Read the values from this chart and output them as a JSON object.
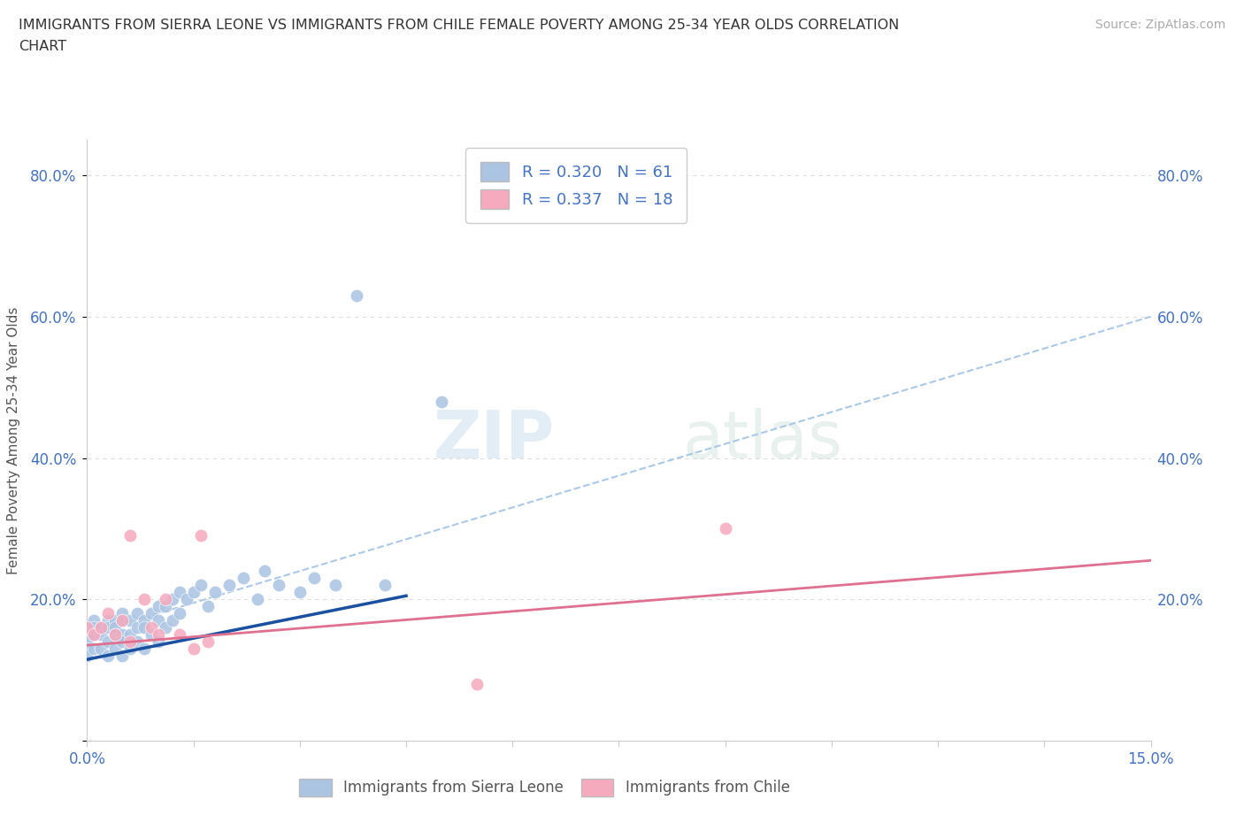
{
  "title_line1": "IMMIGRANTS FROM SIERRA LEONE VS IMMIGRANTS FROM CHILE FEMALE POVERTY AMONG 25-34 YEAR OLDS CORRELATION",
  "title_line2": "CHART",
  "source": "Source: ZipAtlas.com",
  "ylabel": "Female Poverty Among 25-34 Year Olds",
  "x_min": 0.0,
  "x_max": 0.15,
  "y_min": 0.0,
  "y_max": 0.85,
  "sierra_leone_color": "#aac4e2",
  "chile_color": "#f5aabe",
  "sierra_leone_label": "Immigrants from Sierra Leone",
  "chile_label": "Immigrants from Chile",
  "R_sierra_leone": "0.320",
  "N_sierra_leone": 61,
  "R_chile": "0.337",
  "N_chile": 18,
  "watermark_zip": "ZIP",
  "watermark_atlas": "atlas",
  "sl_trend_color": "#1a50a0",
  "ch_trend_color": "#e07090",
  "dashed_line_color": "#aac8e8",
  "background_color": "#ffffff",
  "grid_color": "#dddddd",
  "legend_text_color": "#4472c4",
  "sl_x": [
    0.0,
    0.0,
    0.0,
    0.0,
    0.0,
    0.001,
    0.001,
    0.001,
    0.001,
    0.002,
    0.002,
    0.002,
    0.003,
    0.003,
    0.003,
    0.003,
    0.004,
    0.004,
    0.004,
    0.004,
    0.005,
    0.005,
    0.005,
    0.005,
    0.005,
    0.006,
    0.006,
    0.006,
    0.007,
    0.007,
    0.007,
    0.008,
    0.008,
    0.008,
    0.009,
    0.009,
    0.01,
    0.01,
    0.01,
    0.011,
    0.011,
    0.012,
    0.012,
    0.013,
    0.013,
    0.014,
    0.015,
    0.016,
    0.017,
    0.018,
    0.02,
    0.022,
    0.024,
    0.025,
    0.027,
    0.03,
    0.032,
    0.035,
    0.038,
    0.042,
    0.05
  ],
  "sl_y": [
    0.16,
    0.15,
    0.14,
    0.13,
    0.12,
    0.17,
    0.16,
    0.15,
    0.13,
    0.16,
    0.15,
    0.13,
    0.17,
    0.16,
    0.14,
    0.12,
    0.17,
    0.16,
    0.15,
    0.13,
    0.18,
    0.17,
    0.15,
    0.14,
    0.12,
    0.17,
    0.15,
    0.13,
    0.18,
    0.16,
    0.14,
    0.17,
    0.16,
    0.13,
    0.18,
    0.15,
    0.19,
    0.17,
    0.14,
    0.19,
    0.16,
    0.2,
    0.17,
    0.21,
    0.18,
    0.2,
    0.21,
    0.22,
    0.19,
    0.21,
    0.22,
    0.23,
    0.2,
    0.24,
    0.22,
    0.21,
    0.23,
    0.22,
    0.63,
    0.22,
    0.48
  ],
  "ch_x": [
    0.0,
    0.001,
    0.002,
    0.003,
    0.004,
    0.005,
    0.006,
    0.006,
    0.008,
    0.009,
    0.01,
    0.011,
    0.013,
    0.015,
    0.016,
    0.017,
    0.09,
    0.055
  ],
  "ch_y": [
    0.16,
    0.15,
    0.16,
    0.18,
    0.15,
    0.17,
    0.14,
    0.29,
    0.2,
    0.16,
    0.15,
    0.2,
    0.15,
    0.13,
    0.29,
    0.14,
    0.3,
    0.08
  ],
  "sl_trend_x0": 0.0,
  "sl_trend_y0": 0.115,
  "sl_trend_x1": 0.045,
  "sl_trend_y1": 0.205,
  "ch_trend_x0": 0.0,
  "ch_trend_y0": 0.135,
  "ch_trend_x1": 0.15,
  "ch_trend_y1": 0.255,
  "dash_trend_x0": 0.0,
  "dash_trend_y0": 0.15,
  "dash_trend_x1": 0.15,
  "dash_trend_y1": 0.6
}
